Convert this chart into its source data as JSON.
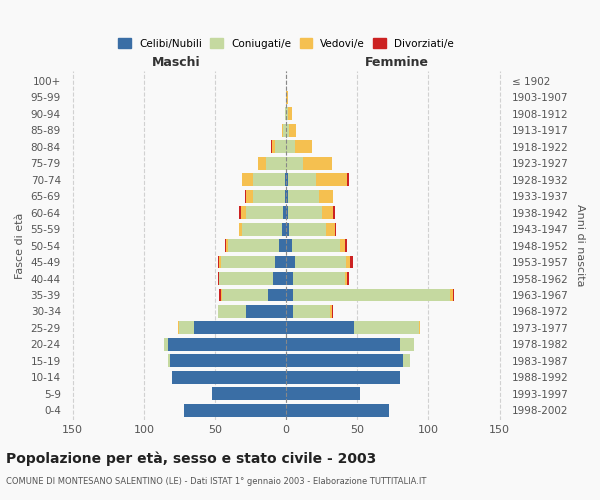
{
  "age_groups": [
    "0-4",
    "5-9",
    "10-14",
    "15-19",
    "20-24",
    "25-29",
    "30-34",
    "35-39",
    "40-44",
    "45-49",
    "50-54",
    "55-59",
    "60-64",
    "65-69",
    "70-74",
    "75-79",
    "80-84",
    "85-89",
    "90-94",
    "95-99",
    "100+"
  ],
  "birth_years": [
    "1998-2002",
    "1993-1997",
    "1988-1992",
    "1983-1987",
    "1978-1982",
    "1973-1977",
    "1968-1972",
    "1963-1967",
    "1958-1962",
    "1953-1957",
    "1948-1952",
    "1943-1947",
    "1938-1942",
    "1933-1937",
    "1928-1932",
    "1923-1927",
    "1918-1922",
    "1913-1917",
    "1908-1912",
    "1903-1907",
    "≤ 1902"
  ],
  "male": {
    "celibe": [
      72,
      52,
      80,
      82,
      83,
      65,
      28,
      13,
      9,
      8,
      5,
      3,
      2,
      1,
      1,
      0,
      0,
      0,
      0,
      0,
      0
    ],
    "coniugato": [
      0,
      0,
      0,
      1,
      3,
      10,
      20,
      32,
      38,
      38,
      36,
      28,
      26,
      22,
      22,
      14,
      8,
      2,
      1,
      0,
      0
    ],
    "vedovo": [
      0,
      0,
      0,
      0,
      0,
      1,
      0,
      1,
      0,
      1,
      1,
      2,
      4,
      5,
      8,
      6,
      2,
      1,
      0,
      0,
      0
    ],
    "divorziato": [
      0,
      0,
      0,
      0,
      0,
      0,
      0,
      1,
      1,
      1,
      1,
      0,
      1,
      1,
      0,
      0,
      1,
      0,
      0,
      0,
      0
    ]
  },
  "female": {
    "nubile": [
      72,
      52,
      80,
      82,
      80,
      48,
      5,
      5,
      5,
      6,
      4,
      2,
      1,
      1,
      1,
      0,
      0,
      0,
      0,
      0,
      0
    ],
    "coniugata": [
      0,
      0,
      0,
      5,
      10,
      45,
      26,
      110,
      36,
      36,
      34,
      26,
      24,
      22,
      20,
      12,
      6,
      2,
      1,
      0,
      0
    ],
    "vedova": [
      0,
      0,
      0,
      0,
      0,
      1,
      1,
      2,
      2,
      3,
      3,
      6,
      8,
      10,
      22,
      20,
      12,
      5,
      3,
      1,
      0
    ],
    "divorziata": [
      0,
      0,
      0,
      0,
      0,
      0,
      1,
      1,
      1,
      2,
      2,
      1,
      1,
      0,
      1,
      0,
      0,
      0,
      0,
      0,
      0
    ]
  },
  "colors": {
    "celibe": "#3A6EA5",
    "coniugato": "#C5D9A0",
    "vedovo": "#F5C050",
    "divorziato": "#CC2222"
  },
  "xlim": 155,
  "title": "Popolazione per età, sesso e stato civile - 2003",
  "subtitle": "COMUNE DI MONTESANO SALENTINO (LE) - Dati ISTAT 1° gennaio 2003 - Elaborazione TUTTITALIA.IT",
  "ylabel_left": "Fasce di età",
  "ylabel_right": "Anni di nascita",
  "xlabel_left": "Maschi",
  "xlabel_right": "Femmine",
  "legend_labels": [
    "Celibi/Nubili",
    "Coniugati/e",
    "Vedovi/e",
    "Divorziati/e"
  ],
  "background_color": "#f9f9f9",
  "xticks": [
    -150,
    -100,
    -50,
    0,
    50,
    100,
    150
  ]
}
